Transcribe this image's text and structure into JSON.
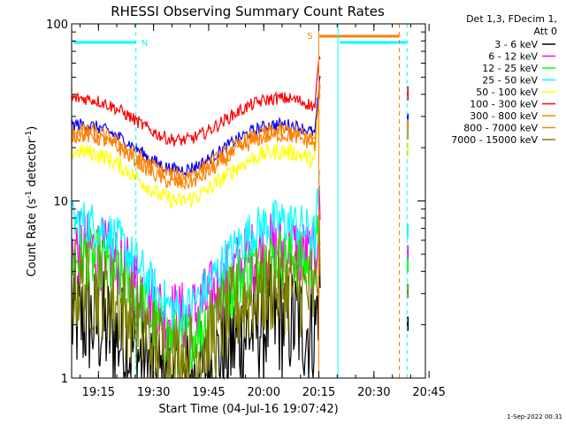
{
  "chart_data": {
    "type": "line",
    "title": "RHESSI Observing Summary Count Rates",
    "xlabel": "Start Time (04-Jul-16 19:07:42)",
    "ylabel_main": "Count Rate (s",
    "ylabel_sup1": "-1",
    "ylabel_mid": " detector",
    "ylabel_sup2": "-1",
    "ylabel_end": ")",
    "y_scale": "log",
    "ylim": [
      1,
      100
    ],
    "xlim_minutes": [
      0,
      96.3
    ],
    "x_ticks": [
      {
        "label": "19:15",
        "minute": 7.3
      },
      {
        "label": "19:30",
        "minute": 22.3
      },
      {
        "label": "19:45",
        "minute": 37.3
      },
      {
        "label": "20:00",
        "minute": 52.3
      },
      {
        "label": "20:15",
        "minute": 67.3
      },
      {
        "label": "20:30",
        "minute": 82.3
      },
      {
        "label": "20:45",
        "minute": 97.3
      }
    ],
    "y_ticks": [
      {
        "label": "1",
        "value": 1
      },
      {
        "label": "10",
        "value": 10
      },
      {
        "label": "100",
        "value": 100
      }
    ],
    "legend_title_1": "Det 1,3, FDecim 1,",
    "legend_title_2": "Att 0",
    "legend_position": "right",
    "series": [
      {
        "name": "3 - 6 keV",
        "color": "#000000",
        "base": 1.5,
        "amp": 0.6,
        "noise": 0.55,
        "clip": true
      },
      {
        "name": "6 - 12 keV",
        "color": "#ff00ff",
        "base": 3.8,
        "amp": 1.6,
        "noise": 0.35,
        "clip": true
      },
      {
        "name": "12 - 25 keV",
        "color": "#00ff00",
        "base": 3.2,
        "amp": 1.6,
        "noise": 0.3,
        "clip": true
      },
      {
        "name": "25 - 50 keV",
        "color": "#00ffff",
        "base": 5.0,
        "amp": 2.6,
        "noise": 0.22,
        "clip": true
      },
      {
        "name": "50 - 100 keV",
        "color": "#ffff00",
        "base": 14.5,
        "amp": 4.5,
        "noise": 0.08,
        "clip": false
      },
      {
        "name": "100 - 300 keV",
        "color": "#ff0000",
        "base": 30,
        "amp": 8,
        "noise": 0.06,
        "clip": false
      },
      {
        "name": "300 - 800 keV",
        "color": "#ff8000",
        "base": 18,
        "amp": 5.5,
        "noise": 0.07,
        "clip": false
      },
      {
        "name": "800 - 7000 keV",
        "color": "#ff8000",
        "base": 19.5,
        "amp": 5.5,
        "noise": 0.07,
        "clip": false
      },
      {
        "name": "7000 - 15000 keV",
        "color": "#808000",
        "base": 2.3,
        "amp": 1.0,
        "noise": 0.45,
        "clip": true
      }
    ],
    "blue_series": {
      "color": "#0000ff",
      "base": 21,
      "amp": 6,
      "noise": 0.06
    },
    "data_end_minute": 67.7,
    "resume_minute": 91.5,
    "night_bars": [
      {
        "label": "N",
        "start": 0,
        "end": 17.5,
        "color": "#00ffff"
      },
      {
        "label": "",
        "start": 72.5,
        "end": 91.3,
        "color": "#00ffff"
      }
    ],
    "saa_bar": {
      "label": "S",
      "start": 67.5,
      "end": 89.2,
      "color": "#ff8000"
    },
    "markers": [
      {
        "minute": 17.5,
        "color": "#00ffff",
        "style": "dashed"
      },
      {
        "minute": 67.3,
        "color": "#ff8000",
        "style": "solid"
      },
      {
        "minute": 72.5,
        "color": "#00ffff",
        "style": "solid"
      },
      {
        "minute": 89.2,
        "color": "#ff8000",
        "style": "dashed"
      },
      {
        "minute": 91.3,
        "color": "#00ffff",
        "style": "dashed"
      }
    ]
  },
  "footer_date": "1-Sep-2022 00:31"
}
